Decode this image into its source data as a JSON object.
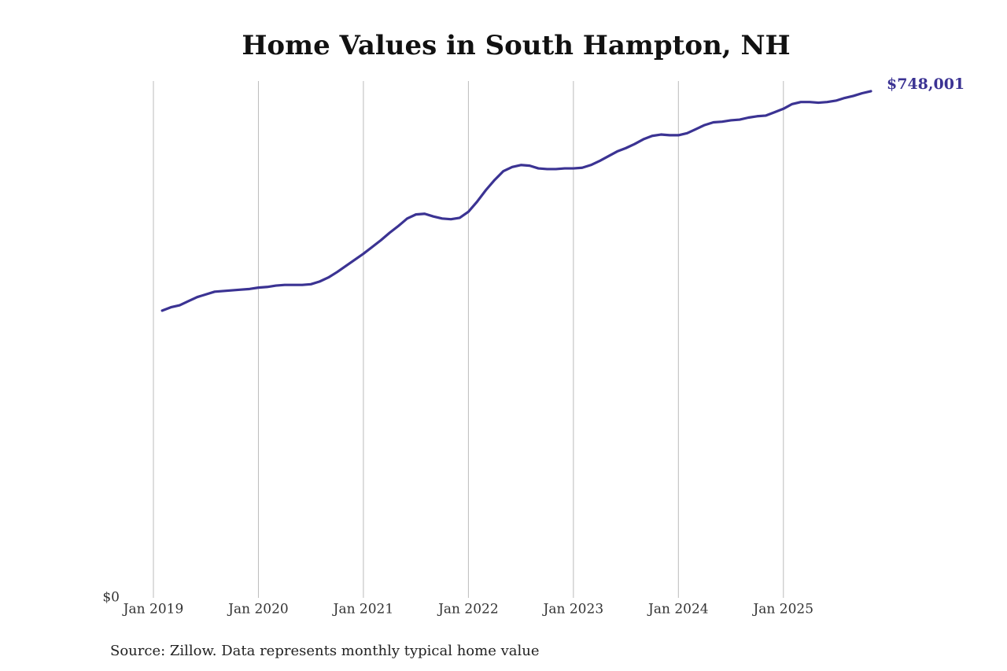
{
  "chart_data": {
    "type": "line",
    "title": "Home Values in South Hampton, NH",
    "source": "Source: Zillow. Data represents monthly typical home value",
    "x": [
      "2019-02",
      "2019-03",
      "2019-04",
      "2019-05",
      "2019-06",
      "2019-07",
      "2019-08",
      "2019-09",
      "2019-10",
      "2019-11",
      "2019-12",
      "2020-01",
      "2020-02",
      "2020-03",
      "2020-04",
      "2020-05",
      "2020-06",
      "2020-07",
      "2020-08",
      "2020-09",
      "2020-10",
      "2020-11",
      "2020-12",
      "2021-01",
      "2021-02",
      "2021-03",
      "2021-04",
      "2021-05",
      "2021-06",
      "2021-07",
      "2021-08",
      "2021-09",
      "2021-10",
      "2021-11",
      "2021-12",
      "2022-01",
      "2022-02",
      "2022-03",
      "2022-04",
      "2022-05",
      "2022-06",
      "2022-07",
      "2022-08",
      "2022-09",
      "2022-10",
      "2022-11",
      "2022-12",
      "2023-01",
      "2023-02",
      "2023-03",
      "2023-04",
      "2023-05",
      "2023-06",
      "2023-07",
      "2023-08",
      "2023-09",
      "2023-10",
      "2023-11",
      "2023-12",
      "2024-01",
      "2024-02",
      "2024-03",
      "2024-04",
      "2024-05",
      "2024-06",
      "2024-07",
      "2024-08",
      "2024-09",
      "2024-10",
      "2024-11",
      "2024-12",
      "2025-01",
      "2025-02",
      "2025-03",
      "2025-04",
      "2025-05",
      "2025-06",
      "2025-07",
      "2025-08",
      "2025-09",
      "2025-10",
      "2025-11"
    ],
    "series": [
      {
        "name": "South Hampton, NH",
        "color": "#3b3393",
        "values": [
          424000,
          429000,
          432000,
          438000,
          444000,
          448000,
          452000,
          453000,
          454000,
          455000,
          456000,
          458000,
          459000,
          461000,
          462000,
          462000,
          462000,
          463000,
          467000,
          473000,
          481000,
          490000,
          499000,
          508000,
          518000,
          528000,
          539000,
          549000,
          560000,
          566000,
          567000,
          563000,
          560000,
          559000,
          561000,
          570000,
          585000,
          602000,
          617000,
          630000,
          636000,
          639000,
          638000,
          634000,
          633000,
          633000,
          634000,
          634000,
          635000,
          639000,
          645000,
          652000,
          659000,
          664000,
          670000,
          677000,
          682000,
          684000,
          683000,
          683000,
          686000,
          692000,
          698000,
          702000,
          703000,
          705000,
          706000,
          709000,
          711000,
          712000,
          717000,
          722000,
          729000,
          732000,
          732000,
          731000,
          732000,
          734000,
          738000,
          741000,
          745000,
          748001
        ],
        "value_labels": [
          null,
          null,
          null,
          null,
          null,
          null,
          null,
          null,
          null,
          null,
          null,
          null,
          null,
          null,
          null,
          null,
          null,
          null,
          null,
          null,
          null,
          null,
          null,
          null,
          null,
          null,
          null,
          null,
          null,
          null,
          null,
          null,
          null,
          null,
          null,
          null,
          null,
          null,
          null,
          null,
          null,
          null,
          null,
          null,
          null,
          null,
          null,
          null,
          null,
          null,
          null,
          null,
          null,
          null,
          null,
          null,
          null,
          null,
          null,
          null,
          null,
          null,
          null,
          null,
          null,
          null,
          null,
          null,
          null,
          null,
          null,
          null,
          null,
          null,
          null,
          null,
          null,
          null,
          null,
          null,
          null,
          "$748,001"
        ]
      }
    ],
    "xlim": [
      "2019-01",
      "2025-11"
    ],
    "xticks": [
      {
        "value": "2019-01",
        "label": "Jan 2019"
      },
      {
        "value": "2020-01",
        "label": "Jan 2020"
      },
      {
        "value": "2021-01",
        "label": "Jan 2021"
      },
      {
        "value": "2022-01",
        "label": "Jan 2022"
      },
      {
        "value": "2023-01",
        "label": "Jan 2023"
      },
      {
        "value": "2024-01",
        "label": "Jan 2024"
      },
      {
        "value": "2025-01",
        "label": "Jan 2025"
      }
    ],
    "ylim": [
      0,
      763000
    ],
    "yticks": [
      {
        "value": 0,
        "label": "$0"
      }
    ],
    "grid": "x"
  }
}
